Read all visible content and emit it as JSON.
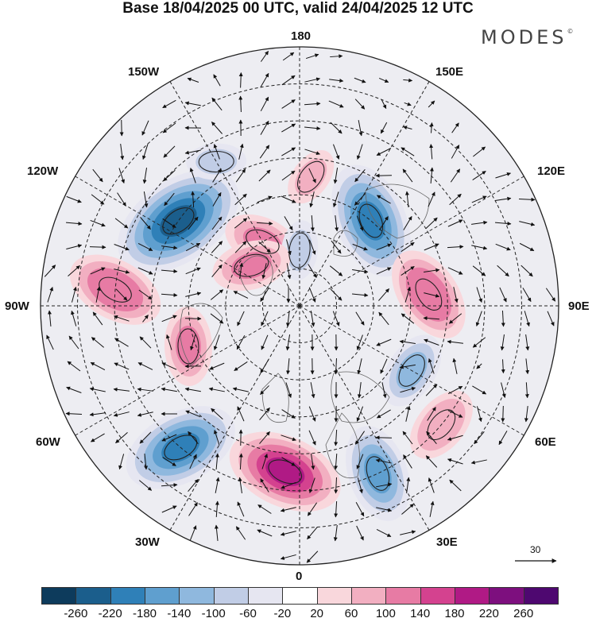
{
  "title": "Base 18/04/2025 00 UTC, valid 24/04/2025 12 UTC",
  "brand": "MODES",
  "brand_mark": "©",
  "longitude_labels": {
    "deg0": "0",
    "deg180": "180",
    "w150": "150W",
    "e150": "150E",
    "w120": "120W",
    "e120": "120E",
    "w90": "90W",
    "e90": "90E",
    "w60": "60W",
    "e60": "60E",
    "w30": "30W",
    "e30": "30E"
  },
  "vector_scale": {
    "value": "30"
  },
  "colorbar": {
    "ticks": [
      "-260",
      "-220",
      "-180",
      "-140",
      "-100",
      "-60",
      "-20",
      "20",
      "60",
      "100",
      "140",
      "180",
      "220",
      "260"
    ],
    "colors": [
      "#0d3b5c",
      "#1b5e8c",
      "#2f80b8",
      "#5f9fcf",
      "#8fb8de",
      "#c1cde6",
      "#e6e6f1",
      "#ffffff",
      "#f9d7dc",
      "#f2afc1",
      "#e77ba4",
      "#d4428f",
      "#b01a85",
      "#7d0f7e",
      "#4e0870"
    ]
  },
  "anomaly_centers": [
    {
      "lon": -125,
      "lat": 50,
      "value": -220
    },
    {
      "lon": 140,
      "lat": 60,
      "value": -180
    },
    {
      "lon": -95,
      "lat": 40,
      "value": 140
    },
    {
      "lon": 95,
      "lat": 55,
      "value": 140
    },
    {
      "lon": -70,
      "lat": 58,
      "value": 120
    },
    {
      "lon": -150,
      "lat": 70,
      "value": 120
    },
    {
      "lon": -40,
      "lat": 40,
      "value": -180
    },
    {
      "lon": -5,
      "lat": 45,
      "value": 200
    },
    {
      "lon": 25,
      "lat": 40,
      "value": -160
    },
    {
      "lon": 60,
      "lat": 55,
      "value": -100
    },
    {
      "lon": 50,
      "lat": 40,
      "value": 100
    },
    {
      "lon": 180,
      "lat": 75,
      "value": -60
    },
    {
      "lon": -130,
      "lat": 73,
      "value": 120
    },
    {
      "lon": 175,
      "lat": 55,
      "value": 80
    },
    {
      "lon": -150,
      "lat": 45,
      "value": -60
    }
  ]
}
